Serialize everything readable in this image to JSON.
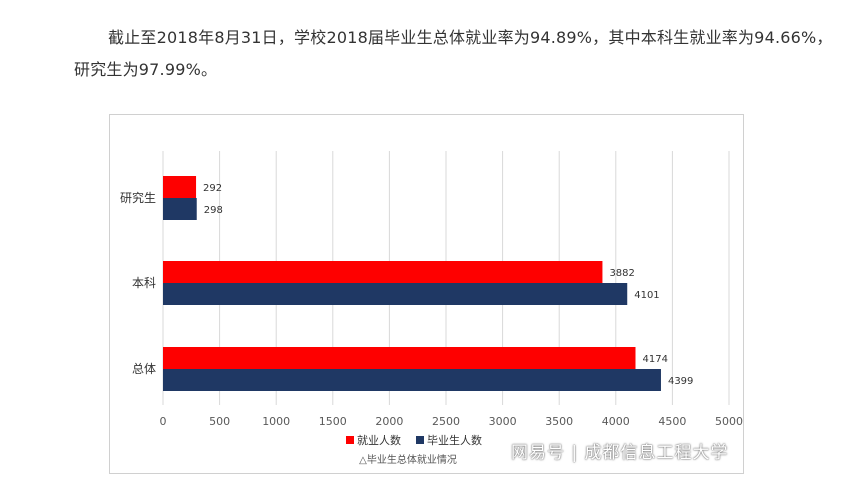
{
  "intro_text": "截止至2018年8月31日，学校2018届毕业生总体就业率为94.89%，其中本科生就业率为94.66%，研究生为97.99%。",
  "watermark": "网易号 | 成都信息工程大学",
  "chart_data": {
    "type": "bar",
    "orientation": "horizontal",
    "categories": [
      "研究生",
      "本科",
      "总体"
    ],
    "series": [
      {
        "name": "就业人数",
        "values": [
          292,
          3882,
          4174
        ],
        "color": "#fe0000"
      },
      {
        "name": "毕业生人数",
        "values": [
          298,
          4101,
          4399
        ],
        "color": "#1f3864"
      }
    ],
    "xlim": [
      0,
      5000
    ],
    "xticks": [
      0,
      500,
      1000,
      1500,
      2000,
      2500,
      3000,
      3500,
      4000,
      4500,
      5000
    ],
    "grid": true,
    "legend_position": "bottom",
    "caption": "△毕业生总体就业情况"
  }
}
